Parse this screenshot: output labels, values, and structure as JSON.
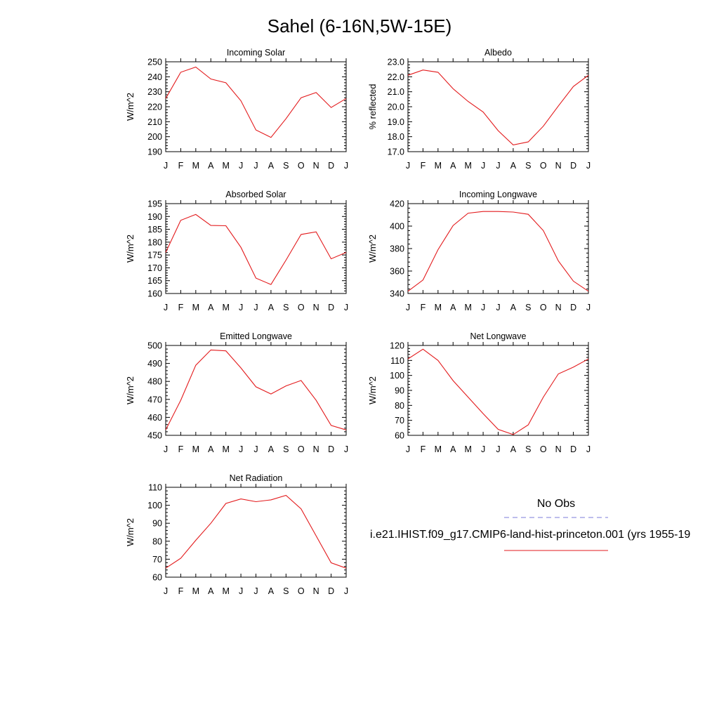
{
  "title": "Sahel (6-16N,5W-15E)",
  "legend": {
    "obs_label": "No Obs",
    "obs_color": "#7b7bd9",
    "model_label": "i.e21.IHIST.f09_g17.CMIP6-land-hist-princeton.001 (yrs 1955-19",
    "model_color": "#e31a1c"
  },
  "chart_data": [
    {
      "type": "line",
      "title": "Incoming Solar",
      "ylabel": "W/m^2",
      "x": [
        "J",
        "F",
        "M",
        "A",
        "M",
        "J",
        "J",
        "A",
        "S",
        "O",
        "N",
        "D",
        "J"
      ],
      "ylim": [
        190,
        250
      ],
      "yticks": [
        "190",
        "200",
        "210",
        "220",
        "230",
        "240",
        "250"
      ],
      "series": [
        {
          "values": [
            225.5,
            243,
            246.5,
            238.5,
            236,
            224,
            204.5,
            199.5,
            212,
            226,
            229.5,
            219.5,
            225.5
          ]
        }
      ]
    },
    {
      "type": "line",
      "title": "Albedo",
      "ylabel": "% reflected",
      "x": [
        "J",
        "F",
        "M",
        "A",
        "M",
        "J",
        "J",
        "A",
        "S",
        "O",
        "N",
        "D",
        "J"
      ],
      "ylim": [
        17.0,
        23.0
      ],
      "yticks": [
        "17.0",
        "18.0",
        "19.0",
        "20.0",
        "21.0",
        "22.0",
        "23.0"
      ],
      "series": [
        {
          "values": [
            22.1,
            22.45,
            22.3,
            21.2,
            20.35,
            19.65,
            18.4,
            17.45,
            17.65,
            18.7,
            20.05,
            21.35,
            22.1
          ]
        }
      ]
    },
    {
      "type": "line",
      "title": "Absorbed Solar",
      "ylabel": "W/m^2",
      "x": [
        "J",
        "F",
        "M",
        "A",
        "M",
        "J",
        "J",
        "A",
        "S",
        "O",
        "N",
        "D",
        "J"
      ],
      "ylim": [
        160,
        195
      ],
      "yticks": [
        "160",
        "165",
        "170",
        "175",
        "180",
        "185",
        "190",
        "195"
      ],
      "series": [
        {
          "values": [
            176,
            188.5,
            190.8,
            186.5,
            186.4,
            178,
            166,
            163.5,
            173,
            183,
            184,
            173.5,
            176
          ]
        }
      ]
    },
    {
      "type": "line",
      "title": "Incoming Longwave",
      "ylabel": "W/m^2",
      "x": [
        "J",
        "F",
        "M",
        "A",
        "M",
        "J",
        "J",
        "A",
        "S",
        "O",
        "N",
        "D",
        "J"
      ],
      "ylim": [
        340,
        420
      ],
      "yticks": [
        "340",
        "360",
        "380",
        "400",
        "420"
      ],
      "series": [
        {
          "values": [
            342,
            352,
            379,
            400.5,
            411.5,
            413,
            413,
            412.5,
            410.5,
            396,
            369,
            351,
            342
          ]
        }
      ]
    },
    {
      "type": "line",
      "title": "Emitted Longwave",
      "ylabel": "W/m^2",
      "x": [
        "J",
        "F",
        "M",
        "A",
        "M",
        "J",
        "J",
        "A",
        "S",
        "O",
        "N",
        "D",
        "J"
      ],
      "ylim": [
        450,
        500
      ],
      "yticks": [
        "450",
        "460",
        "470",
        "480",
        "490",
        "500"
      ],
      "series": [
        {
          "values": [
            453,
            469.5,
            489,
            497.5,
            497,
            487.5,
            477,
            473,
            477.5,
            480.5,
            469.5,
            455.5,
            453
          ]
        }
      ]
    },
    {
      "type": "line",
      "title": "Net Longwave",
      "ylabel": "W/m^2",
      "x": [
        "J",
        "F",
        "M",
        "A",
        "M",
        "J",
        "J",
        "A",
        "S",
        "O",
        "N",
        "D",
        "J"
      ],
      "ylim": [
        60,
        120
      ],
      "yticks": [
        "60",
        "70",
        "80",
        "90",
        "100",
        "110",
        "120"
      ],
      "series": [
        {
          "values": [
            111,
            117.5,
            110,
            96.5,
            85.5,
            74.5,
            64,
            60.5,
            67,
            85.5,
            101,
            105.5,
            111
          ]
        }
      ]
    },
    {
      "type": "line",
      "title": "Net Radiation",
      "ylabel": "W/m^2",
      "x": [
        "J",
        "F",
        "M",
        "A",
        "M",
        "J",
        "J",
        "A",
        "S",
        "O",
        "N",
        "D",
        "J"
      ],
      "ylim": [
        60,
        110
      ],
      "yticks": [
        "60",
        "70",
        "80",
        "90",
        "100",
        "110"
      ],
      "series": [
        {
          "values": [
            65,
            70.5,
            80.5,
            90,
            101,
            103.5,
            102,
            103,
            105.5,
            98,
            83,
            68,
            65
          ]
        }
      ]
    }
  ]
}
